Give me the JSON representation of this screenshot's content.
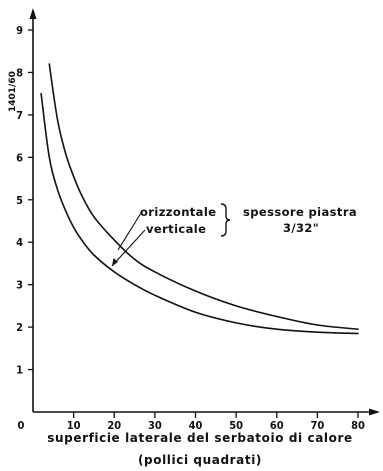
{
  "chart_data": {
    "type": "line",
    "ylabel": "1401/60",
    "xlabel_line1": "superficie  laterale  del  serbatoio  di  calore",
    "xlabel_line2": "(pollici  quadrati)",
    "x_ticks": [
      "0",
      "10",
      "20",
      "30",
      "40",
      "50",
      "60",
      "70",
      "80"
    ],
    "y_ticks": [
      "1",
      "2",
      "3",
      "4",
      "5",
      "6",
      "7",
      "8",
      "9"
    ],
    "xlim": [
      0,
      85
    ],
    "ylim": [
      0,
      9.6
    ],
    "series": [
      {
        "name": "orizzontale",
        "x": [
          4,
          6,
          8,
          10,
          12,
          15,
          20,
          25,
          30,
          40,
          50,
          60,
          70,
          80
        ],
        "y": [
          8.2,
          6.9,
          6.1,
          5.55,
          5.1,
          4.6,
          4.05,
          3.6,
          3.3,
          2.85,
          2.5,
          2.25,
          2.05,
          1.95
        ]
      },
      {
        "name": "verticale",
        "x": [
          2,
          4,
          6,
          8,
          10,
          12,
          15,
          20,
          25,
          30,
          40,
          50,
          60,
          70,
          80
        ],
        "y": [
          7.5,
          6.0,
          5.25,
          4.75,
          4.35,
          4.05,
          3.7,
          3.3,
          3.0,
          2.75,
          2.35,
          2.1,
          1.95,
          1.88,
          1.85
        ]
      }
    ],
    "annotation": {
      "label_horizontal": "orizzontale",
      "label_vertical": "verticale",
      "brace": "}",
      "group_line1": "spessore  piastra",
      "group_line2": "3/32\""
    }
  }
}
